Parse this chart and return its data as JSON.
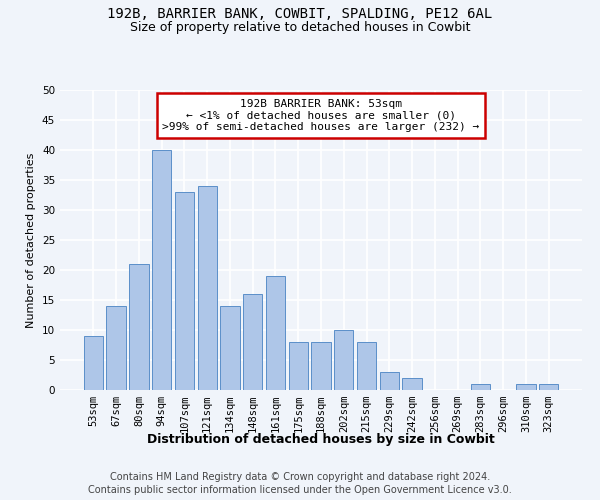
{
  "title1": "192B, BARRIER BANK, COWBIT, SPALDING, PE12 6AL",
  "title2": "Size of property relative to detached houses in Cowbit",
  "xlabel": "Distribution of detached houses by size in Cowbit",
  "ylabel": "Number of detached properties",
  "categories": [
    "53sqm",
    "67sqm",
    "80sqm",
    "94sqm",
    "107sqm",
    "121sqm",
    "134sqm",
    "148sqm",
    "161sqm",
    "175sqm",
    "188sqm",
    "202sqm",
    "215sqm",
    "229sqm",
    "242sqm",
    "256sqm",
    "269sqm",
    "283sqm",
    "296sqm",
    "310sqm",
    "323sqm"
  ],
  "values": [
    9,
    14,
    21,
    40,
    33,
    34,
    14,
    16,
    19,
    8,
    8,
    10,
    8,
    3,
    2,
    0,
    0,
    1,
    0,
    1,
    1
  ],
  "bar_color": "#aec6e8",
  "bar_edge_color": "#5b8fc9",
  "annotation_text": "192B BARRIER BANK: 53sqm\n← <1% of detached houses are smaller (0)\n>99% of semi-detached houses are larger (232) →",
  "annotation_box_color": "#ffffff",
  "annotation_box_edge_color": "#cc0000",
  "ylim": [
    0,
    50
  ],
  "yticks": [
    0,
    5,
    10,
    15,
    20,
    25,
    30,
    35,
    40,
    45,
    50
  ],
  "footer1": "Contains HM Land Registry data © Crown copyright and database right 2024.",
  "footer2": "Contains public sector information licensed under the Open Government Licence v3.0.",
  "bg_color": "#f0f4fa",
  "grid_color": "#ffffff",
  "title1_fontsize": 10,
  "title2_fontsize": 9,
  "xlabel_fontsize": 9,
  "ylabel_fontsize": 8,
  "tick_fontsize": 7.5,
  "annotation_fontsize": 8,
  "footer_fontsize": 7
}
